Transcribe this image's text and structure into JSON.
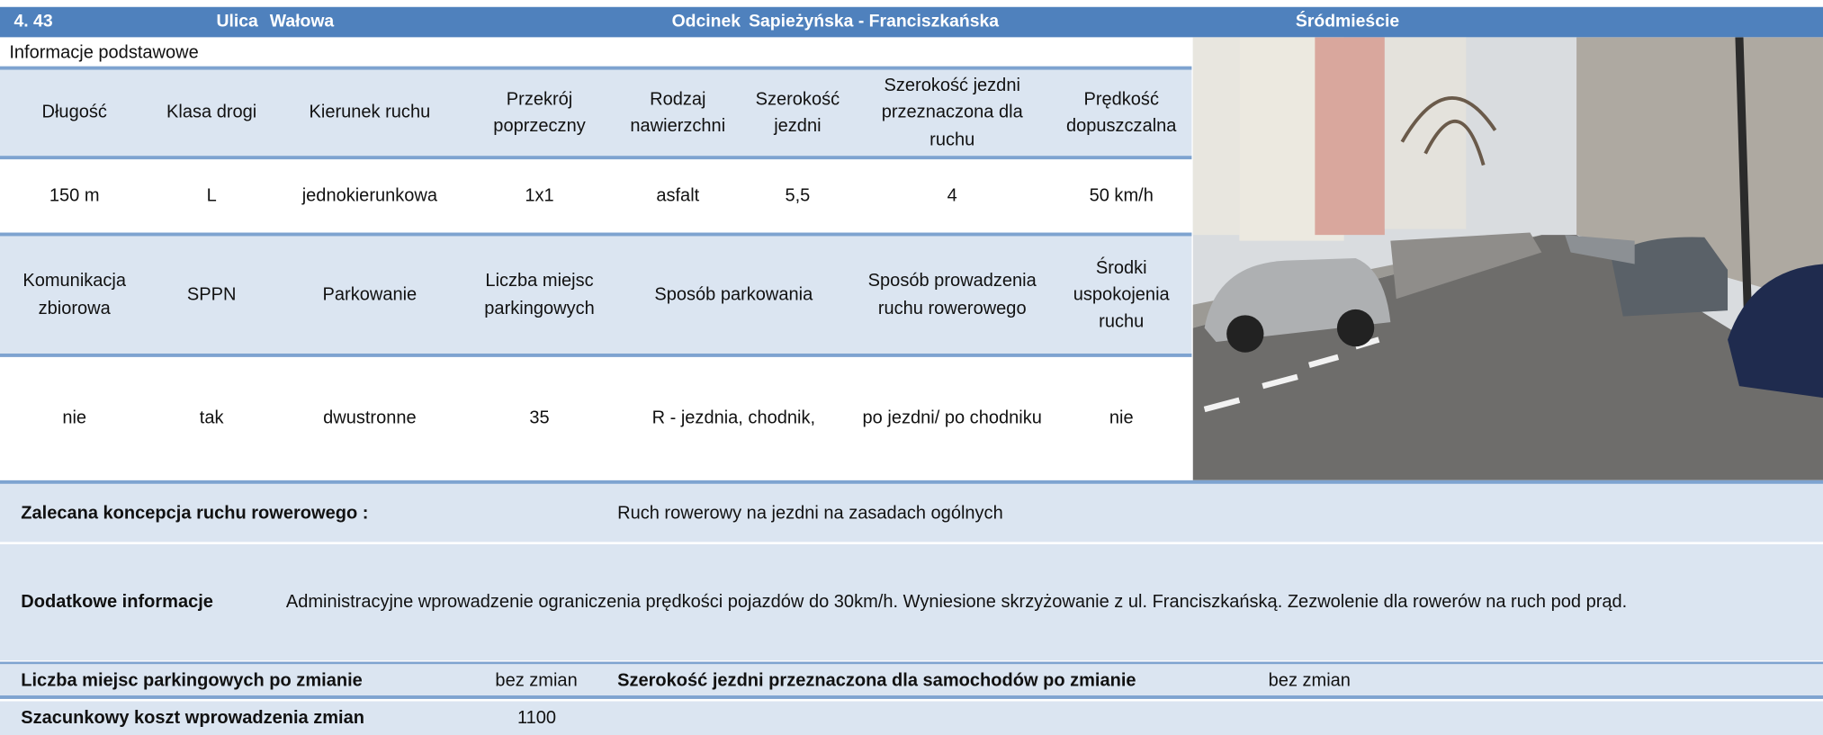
{
  "header": {
    "number": "4. 43",
    "street_label": "Ulica",
    "street": "Wałowa",
    "section_label": "Odcinek",
    "section": "Sapieżyńska - Franciszkańska",
    "district": "Śródmieście"
  },
  "basic_info_title": "Informacje podstawowe",
  "table1": {
    "headers": [
      "Długość",
      "Klasa drogi",
      "Kierunek ruchu",
      "Przekrój poprzeczny",
      "Rodzaj nawierzchni",
      "Szerokość jezdni",
      "Szerokość jezdni przeznaczona dla ruchu",
      "Prędkość dopuszczalna"
    ],
    "values": [
      "150 m",
      "L",
      "jednokierunkowa",
      "1x1",
      "asfalt",
      "5,5",
      "4",
      "50 km/h"
    ]
  },
  "table2": {
    "headers": [
      "Komunikacja zbiorowa",
      "SPPN",
      "Parkowanie",
      "Liczba miejsc parkingowych",
      "Sposób parkowania",
      "Sposób prowadzenia ruchu rowerowego",
      "Środki uspokojenia ruchu"
    ],
    "values": [
      "nie",
      "tak",
      "dwustronne",
      "35",
      "R - jezdnia, chodnik,",
      "po jezdni/ po chodniku",
      "nie"
    ]
  },
  "recommendation": {
    "label": "Zalecana koncepcja ruchu rowerowego :",
    "value": "Ruch rowerowy na jezdni na zasadach ogólnych"
  },
  "additional": {
    "label": "Dodatkowe informacje",
    "value": "Administracyjne wprowadzenie ograniczenia prędkości pojazdów do 30km/h. Wyniesione skrzyżowanie z ul. Franciszkańską. Zezwolenie dla rowerów na ruch pod prąd."
  },
  "parking_after": {
    "label": "Liczba miejsc parkingowych po zmianie",
    "value": "bez zmian"
  },
  "width_after": {
    "label": "Szerokość jezdni przeznaczona dla samochodów po zmianie",
    "value": "bez zmian"
  },
  "cost": {
    "label": "Szacunkowy koszt wprowadzenia zmian",
    "value": "1100"
  }
}
